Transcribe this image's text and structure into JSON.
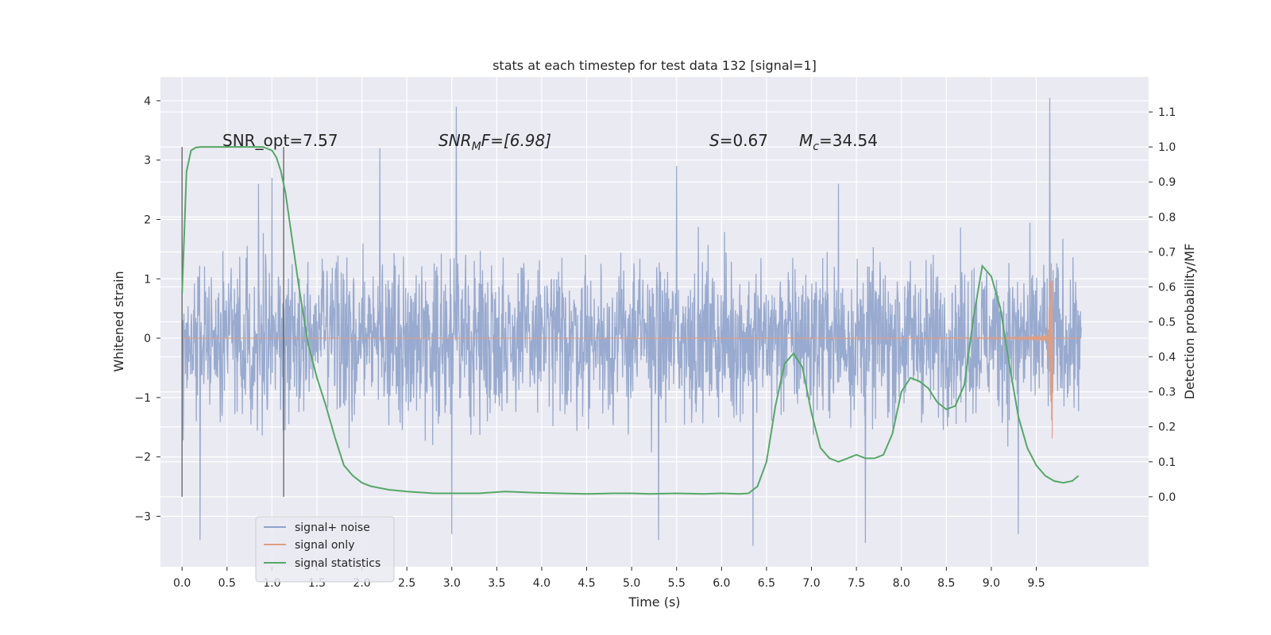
{
  "chart_data": {
    "type": "line",
    "title": "stats at each timestep for test data 132 [signal=1]",
    "xlabel": "Time (s)",
    "ylabel": "Whitened strain",
    "y2label": "Detection probability/MF",
    "xlim": [
      -0.24,
      10.75
    ],
    "ylim": [
      -3.85,
      4.4
    ],
    "y2lim": [
      -0.2,
      1.2
    ],
    "xticks": [
      "0.0",
      "0.5",
      "1.0",
      "1.5",
      "2.0",
      "2.5",
      "3.0",
      "3.5",
      "4.0",
      "4.5",
      "5.0",
      "5.5",
      "6.0",
      "6.5",
      "7.0",
      "7.5",
      "8.0",
      "8.5",
      "9.0",
      "9.5"
    ],
    "yticks": [
      "4",
      "3",
      "2",
      "1",
      "0",
      "−1",
      "−2",
      "−3"
    ],
    "y2ticks": [
      "1.1",
      "1.0",
      "0.9",
      "0.8",
      "0.7",
      "0.6",
      "0.5",
      "0.4",
      "0.3",
      "0.2",
      "0.1",
      "0.0"
    ],
    "grid": true,
    "legend_placement": "lower-left",
    "annotations": {
      "snr_opt": "SNR_opt=7.57",
      "snr_mf_main": "SNR",
      "snr_mf_sub": "M",
      "snr_mf_rest": "F=[6.98]",
      "s_var": "S",
      "s_rest": "=0.67",
      "mc_main": "M",
      "mc_sub": "c",
      "mc_rest": "=34.54"
    },
    "vlines": [
      0.0,
      1.13
    ],
    "series": [
      {
        "name": "signal+ noise",
        "color": "#8fa3cb",
        "description_range": "noise band roughly -3.4 to 4.1",
        "peaks": [
          [
            3.05,
            3.9
          ],
          [
            9.65,
            4.05
          ],
          [
            0.85,
            2.6
          ],
          [
            2.2,
            3.2
          ],
          [
            5.5,
            2.9
          ],
          [
            7.3,
            2.6
          ],
          [
            1.0,
            2.7
          ],
          [
            0.2,
            -3.4
          ],
          [
            3.0,
            -3.3
          ],
          [
            5.3,
            -3.4
          ],
          [
            6.35,
            -3.5
          ],
          [
            7.6,
            -3.45
          ],
          [
            9.3,
            -3.3
          ]
        ]
      },
      {
        "name": "signal only",
        "color": "#dd9e84",
        "chirp_end": 9.68,
        "peak_amplitude": 1.75
      },
      {
        "name": "signal statistics",
        "color": "#55a868",
        "axis": "right",
        "x": [
          0.0,
          0.05,
          0.1,
          0.15,
          0.2,
          0.3,
          0.5,
          0.7,
          0.9,
          1.0,
          1.05,
          1.1,
          1.15,
          1.2,
          1.3,
          1.4,
          1.5,
          1.6,
          1.7,
          1.8,
          1.9,
          2.0,
          2.1,
          2.3,
          2.5,
          2.8,
          3.0,
          3.3,
          3.6,
          3.9,
          4.2,
          4.5,
          4.8,
          5.0,
          5.2,
          5.5,
          5.8,
          6.0,
          6.2,
          6.3,
          6.4,
          6.5,
          6.6,
          6.7,
          6.8,
          6.9,
          7.0,
          7.1,
          7.2,
          7.3,
          7.4,
          7.5,
          7.6,
          7.7,
          7.8,
          7.9,
          8.0,
          8.1,
          8.2,
          8.3,
          8.4,
          8.5,
          8.6,
          8.7,
          8.8,
          8.9,
          9.0,
          9.1,
          9.2,
          9.3,
          9.4,
          9.5,
          9.6,
          9.7,
          9.8,
          9.9,
          9.97
        ],
        "y": [
          0.58,
          0.93,
          0.99,
          0.998,
          1.0,
          1.0,
          1.0,
          1.0,
          1.0,
          0.99,
          0.97,
          0.93,
          0.87,
          0.78,
          0.6,
          0.44,
          0.34,
          0.26,
          0.17,
          0.09,
          0.06,
          0.04,
          0.03,
          0.02,
          0.015,
          0.01,
          0.01,
          0.01,
          0.015,
          0.012,
          0.01,
          0.008,
          0.01,
          0.01,
          0.008,
          0.01,
          0.008,
          0.01,
          0.008,
          0.01,
          0.03,
          0.1,
          0.26,
          0.38,
          0.41,
          0.37,
          0.24,
          0.14,
          0.11,
          0.1,
          0.11,
          0.12,
          0.11,
          0.11,
          0.12,
          0.18,
          0.3,
          0.34,
          0.33,
          0.31,
          0.27,
          0.25,
          0.26,
          0.32,
          0.51,
          0.66,
          0.63,
          0.54,
          0.38,
          0.23,
          0.14,
          0.09,
          0.06,
          0.045,
          0.04,
          0.045,
          0.06
        ]
      }
    ]
  }
}
